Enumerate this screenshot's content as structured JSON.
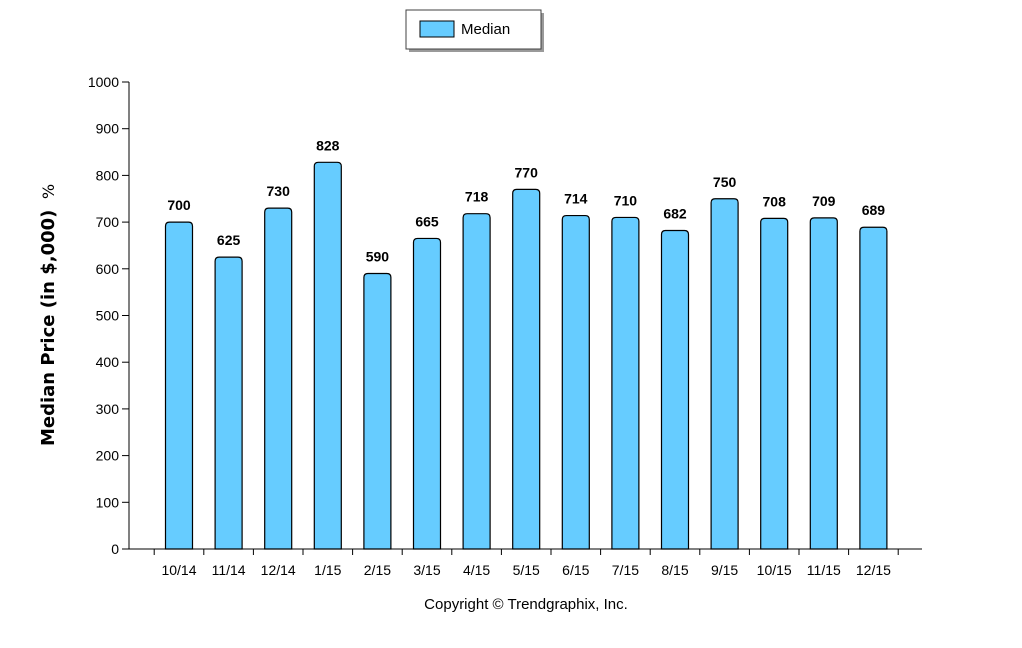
{
  "chart_data": {
    "type": "bar",
    "categories": [
      "10/14",
      "11/14",
      "12/14",
      "1/15",
      "2/15",
      "3/15",
      "4/15",
      "5/15",
      "6/15",
      "7/15",
      "8/15",
      "9/15",
      "10/15",
      "11/15",
      "12/15"
    ],
    "series": [
      {
        "name": "Median",
        "values": [
          700,
          625,
          730,
          828,
          590,
          665,
          718,
          770,
          714,
          710,
          682,
          750,
          708,
          709,
          689
        ],
        "color": "#66ccff"
      }
    ],
    "ylabel": "Median Price (in $,000)",
    "ylabel_unit": "%",
    "xlabel": "",
    "ylim": [
      0,
      1000
    ],
    "yticks": [
      0,
      100,
      200,
      300,
      400,
      500,
      600,
      700,
      800,
      900,
      1000
    ],
    "grid": false,
    "legend": "top-center",
    "data_labels": true
  },
  "footer": {
    "copyright": "Copyright © Trendgraphix, Inc."
  }
}
